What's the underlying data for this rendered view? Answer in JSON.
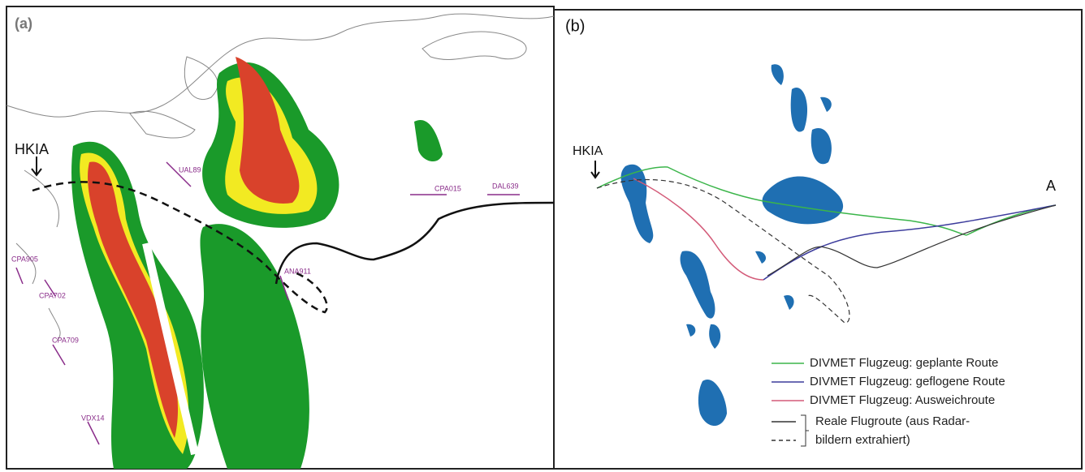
{
  "panel_a": {
    "label": "(a)",
    "airport": "HKIA",
    "flights": [
      "UAL89",
      "CPA015",
      "DAL639",
      "CPA905",
      "CPA702",
      "CPA709",
      "ANA911",
      "VDX14"
    ]
  },
  "panel_b": {
    "label": "(b)",
    "airport": "HKIA",
    "destination": "A",
    "legend": [
      "DIVMET Flugzeug: geplante Route",
      "DIVMET Flugzeug: geflogene Route",
      "DIVMET Flugzeug: Ausweichroute"
    ],
    "legend_real": [
      "Reale Flugroute (aus Radar-",
      "bildern extrahiert)"
    ]
  }
}
